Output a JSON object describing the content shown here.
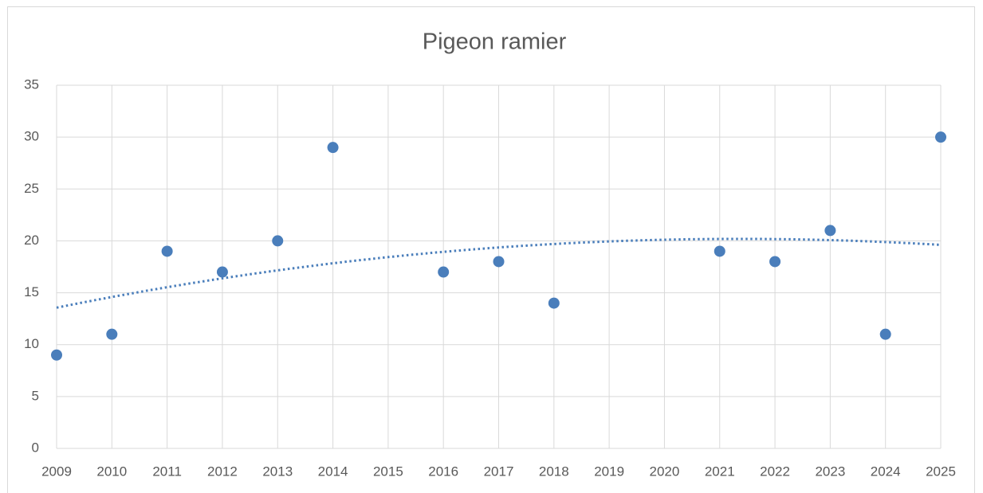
{
  "chart_data": {
    "type": "scatter",
    "title": "Pigeon ramier",
    "series": [
      {
        "color": "#4a7ebb",
        "x": [
          2009,
          2010,
          2011,
          2012,
          2013,
          2014,
          2016,
          2017,
          2018,
          2021,
          2022,
          2023,
          2024,
          2025
        ],
        "values": [
          9,
          11,
          19,
          17,
          20,
          29,
          17,
          18,
          14,
          19,
          18,
          21,
          11,
          30
        ]
      }
    ],
    "trendline": {
      "type": "polynomial",
      "order": 2,
      "color": "#4a7ebb"
    },
    "xlim": [
      2009,
      2025
    ],
    "xticks": [
      2009,
      2010,
      2011,
      2012,
      2013,
      2014,
      2015,
      2016,
      2017,
      2018,
      2019,
      2020,
      2021,
      2022,
      2023,
      2024,
      2025
    ],
    "ylim": [
      0,
      35
    ],
    "yticks": [
      0,
      5,
      10,
      15,
      20,
      25,
      30,
      35
    ],
    "grid": true
  }
}
